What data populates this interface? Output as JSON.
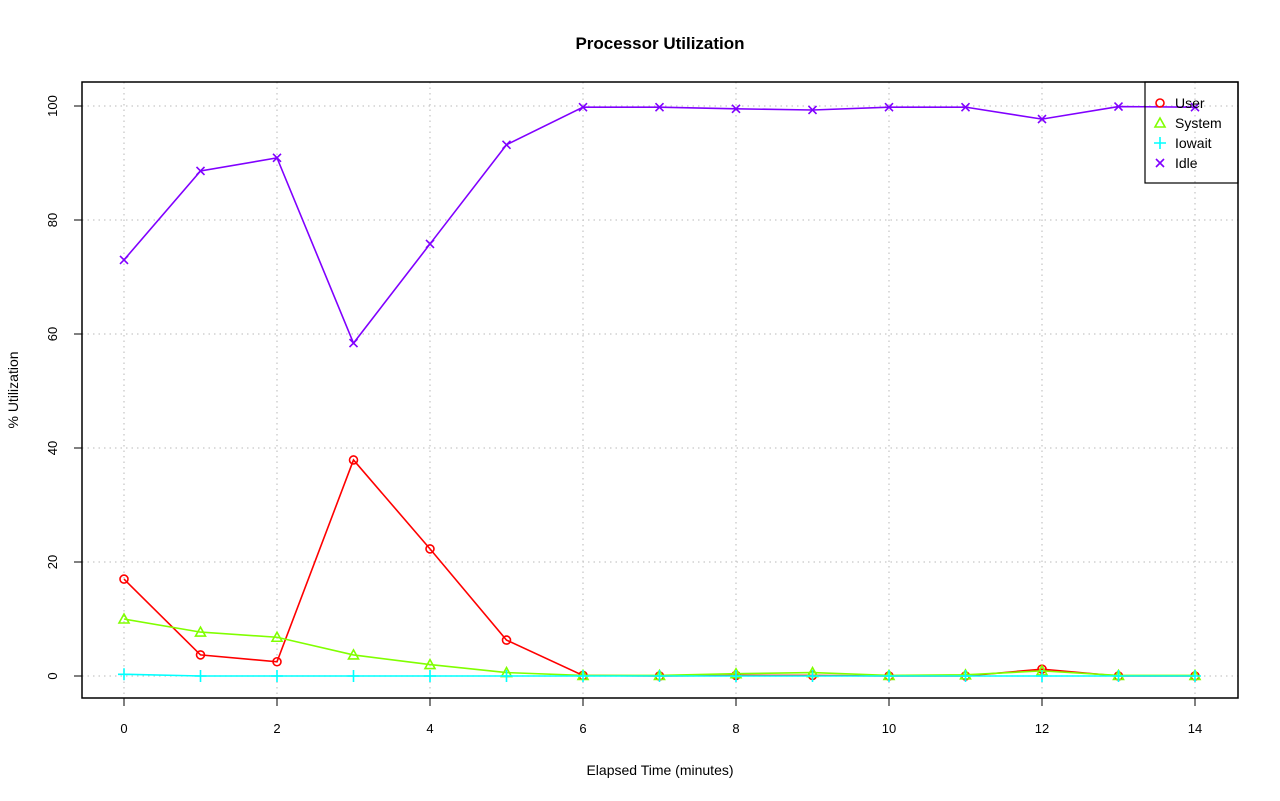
{
  "chart_data": {
    "type": "line",
    "title": "Processor Utilization",
    "xlabel": "Elapsed Time (minutes)",
    "ylabel": "% Utilization",
    "xlim": [
      0,
      14
    ],
    "ylim": [
      0,
      100
    ],
    "xticks": [
      0,
      2,
      4,
      6,
      8,
      10,
      12,
      14
    ],
    "yticks": [
      0,
      20,
      40,
      60,
      80,
      100
    ],
    "grid": true,
    "legend_position": "top-right",
    "x": [
      0,
      1,
      2,
      3,
      4,
      5,
      6,
      7,
      8,
      9,
      10,
      11,
      12,
      13,
      14
    ],
    "series": [
      {
        "name": "User",
        "color": "#ff0000",
        "marker": "circle",
        "values": [
          17.0,
          3.7,
          2.5,
          37.9,
          22.3,
          6.3,
          0.1,
          0.0,
          0.1,
          0.1,
          0.0,
          0.0,
          1.2,
          0.0,
          0.0
        ]
      },
      {
        "name": "System",
        "color": "#80ff00",
        "marker": "triangle",
        "values": [
          10.0,
          7.7,
          6.8,
          3.7,
          2.0,
          0.6,
          0.1,
          0.1,
          0.4,
          0.6,
          0.1,
          0.2,
          0.9,
          0.1,
          0.1
        ]
      },
      {
        "name": "Iowait",
        "color": "#00ffff",
        "marker": "plus",
        "values": [
          0.3,
          0.0,
          0.0,
          0.0,
          0.0,
          0.0,
          0.0,
          0.0,
          0.0,
          0.0,
          0.0,
          0.0,
          0.0,
          0.0,
          0.0
        ]
      },
      {
        "name": "Idle",
        "color": "#8000ff",
        "marker": "cross",
        "values": [
          73.0,
          88.6,
          90.9,
          58.4,
          75.8,
          93.2,
          99.8,
          99.8,
          99.5,
          99.3,
          99.8,
          99.8,
          97.7,
          99.9,
          99.8
        ]
      }
    ]
  }
}
